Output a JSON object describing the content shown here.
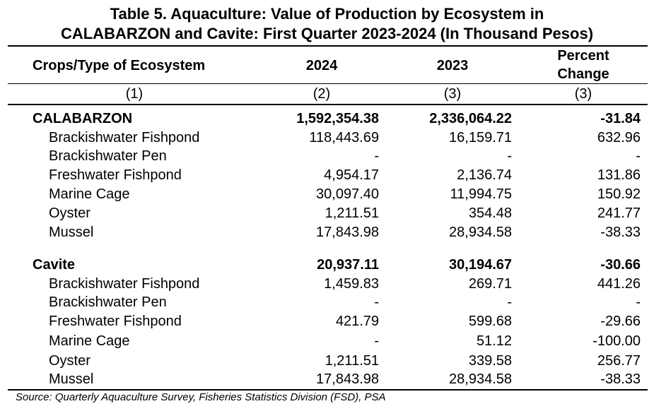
{
  "table": {
    "title_line1": "Table 5. Aquaculture: Value of Production by Ecosystem in",
    "title_line2": "CALABARZON and Cavite: First Quarter 2023-2024 (In Thousand Pesos)",
    "headers": {
      "crops": "Crops/Type of Ecosystem",
      "y2024": "2024",
      "y2023": "2023",
      "pct_line1": "Percent",
      "pct_line2": "Change"
    },
    "column_numbers": [
      "(1)",
      "(2)",
      "(3)",
      "(3)"
    ],
    "groups": [
      {
        "name": "CALABARZON",
        "v2024": "1,592,354.38",
        "v2023": "2,336,064.22",
        "pct": "-31.84",
        "rows": [
          {
            "label": "Brackishwater Fishpond",
            "v2024": "118,443.69",
            "v2023": "16,159.71",
            "pct": "632.96"
          },
          {
            "label": "Brackishwater Pen",
            "v2024": "-",
            "v2023": "-",
            "pct": "-"
          },
          {
            "label": "Freshwater Fishpond",
            "v2024": "4,954.17",
            "v2023": "2,136.74",
            "pct": "131.86"
          },
          {
            "label": "Marine Cage",
            "v2024": "30,097.40",
            "v2023": "11,994.75",
            "pct": "150.92"
          },
          {
            "label": "Oyster",
            "v2024": "1,211.51",
            "v2023": "354.48",
            "pct": "241.77"
          },
          {
            "label": "Mussel",
            "v2024": "17,843.98",
            "v2023": "28,934.58",
            "pct": "-38.33"
          }
        ]
      },
      {
        "name": "Cavite",
        "v2024": "20,937.11",
        "v2023": "30,194.67",
        "pct": "-30.66",
        "rows": [
          {
            "label": "Brackishwater Fishpond",
            "v2024": "1,459.83",
            "v2023": "269.71",
            "pct": "441.26"
          },
          {
            "label": "Brackishwater Pen",
            "v2024": "-",
            "v2023": "-",
            "pct": "-"
          },
          {
            "label": "Freshwater Fishpond",
            "v2024": "421.79",
            "v2023": "599.68",
            "pct": "-29.66"
          },
          {
            "label": "Marine Cage",
            "v2024": "-",
            "v2023": "51.12",
            "pct": "-100.00"
          },
          {
            "label": "Oyster",
            "v2024": "1,211.51",
            "v2023": "339.58",
            "pct": "256.77"
          },
          {
            "label": "Mussel",
            "v2024": "17,843.98",
            "v2023": "28,934.58",
            "pct": "-38.33"
          }
        ]
      }
    ],
    "source": "Source: Quarterly Aquaculture Survey, Fisheries Statistics Division (FSD), PSA"
  }
}
